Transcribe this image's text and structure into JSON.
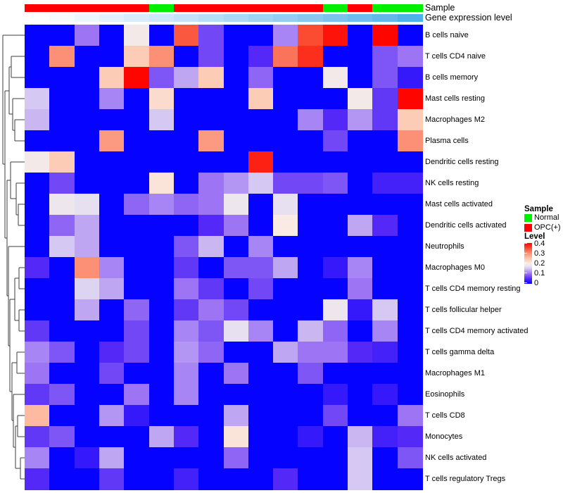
{
  "annotation_titles": {
    "sample": "Sample",
    "gene_expression": "Gene expression level"
  },
  "legend": {
    "sample_title": "Sample",
    "items": [
      {
        "label": "Normal",
        "color": "#00ee00"
      },
      {
        "label": "OPC(+)",
        "color": "#ff0000"
      }
    ],
    "level_title": "Level",
    "level_ticks": [
      "0.4",
      "0.3",
      "0.2",
      "0.1",
      "0"
    ]
  },
  "chart_data": {
    "type": "heatmap",
    "title": "",
    "value_label": "Level",
    "value_range": [
      0,
      0.4
    ],
    "n_columns": 16,
    "rows": [
      "B cells naive",
      "T cells CD4 naive",
      "B cells memory",
      "Mast cells resting",
      "Macrophages M2",
      "Plasma cells",
      "Dendritic cells resting",
      "NK cells resting",
      "Mast cells activated",
      "Dendritic cells activated",
      "Neutrophils",
      "Macrophages M0",
      "T cells CD4 memory resting",
      "T cells follicular helper",
      "T cells CD4 memory activated",
      "T cells gamma delta",
      "Macrophages M1",
      "Eosinophils",
      "T cells CD8",
      "Monocytes",
      "NK cells activated",
      "T cells regulatory  Tregs"
    ],
    "values": [
      [
        0,
        0,
        0.1,
        0,
        0.19,
        0,
        0.34,
        0.07,
        0,
        0,
        0.11,
        0.35,
        0.39,
        0,
        0.4,
        0
      ],
      [
        0,
        0.3,
        0,
        0,
        0.24,
        0.3,
        0,
        0.07,
        0,
        0.05,
        0.32,
        0.37,
        0,
        0,
        0.08,
        0.1
      ],
      [
        0,
        0,
        0,
        0.24,
        0.4,
        0.08,
        0.13,
        0.24,
        0,
        0.09,
        0,
        0,
        0.19,
        0,
        0.08,
        0.03
      ],
      [
        0.15,
        0,
        0,
        0.11,
        0,
        0.22,
        0,
        0,
        0,
        0.24,
        0,
        0,
        0,
        0.19,
        0.06,
        0.4
      ],
      [
        0.14,
        0,
        0,
        0,
        0,
        0.15,
        0,
        0,
        0,
        0,
        0,
        0.11,
        0.05,
        0.12,
        0.06,
        0.24
      ],
      [
        0,
        0,
        0,
        0.29,
        0,
        0,
        0,
        0.29,
        0,
        0,
        0,
        0,
        0.07,
        0,
        0,
        0.3
      ],
      [
        0.19,
        0.24,
        0,
        0,
        0,
        0,
        0,
        0,
        0,
        0.38,
        0,
        0,
        0,
        0,
        0,
        0
      ],
      [
        0,
        0.07,
        0,
        0,
        0,
        0.21,
        0,
        0.1,
        0.12,
        0.15,
        0.07,
        0.07,
        0.08,
        0,
        0.04,
        0.04
      ],
      [
        0,
        0.18,
        0.17,
        0,
        0.09,
        0.11,
        0.09,
        0.1,
        0.18,
        0,
        0.17,
        0,
        0,
        0,
        0,
        0
      ],
      [
        0,
        0.09,
        0.13,
        0,
        0,
        0,
        0,
        0.05,
        0.1,
        0,
        0.2,
        0,
        0,
        0.13,
        0.05,
        0
      ],
      [
        0,
        0.15,
        0.13,
        0,
        0,
        0,
        0.08,
        0.14,
        0,
        0.11,
        0,
        0,
        0,
        0,
        0,
        0
      ],
      [
        0.05,
        0,
        0.3,
        0.11,
        0,
        0,
        0.06,
        0,
        0.08,
        0.08,
        0.13,
        0,
        0.03,
        0.11,
        0,
        0
      ],
      [
        0,
        0,
        0.16,
        0.13,
        0,
        0,
        0.1,
        0.06,
        0,
        0.07,
        0,
        0,
        0,
        0.1,
        0,
        0
      ],
      [
        0,
        0,
        0.13,
        0,
        0.09,
        0,
        0.06,
        0.1,
        0.07,
        0,
        0,
        0,
        0.18,
        0.03,
        0.15,
        0
      ],
      [
        0.06,
        0,
        0,
        0,
        0.07,
        0,
        0.11,
        0.08,
        0.17,
        0.11,
        0,
        0.14,
        0.09,
        0,
        0.11,
        0
      ],
      [
        0.11,
        0.08,
        0,
        0.05,
        0.07,
        0,
        0.12,
        0.09,
        0,
        0,
        0.13,
        0.1,
        0.1,
        0.05,
        0.04,
        0
      ],
      [
        0.1,
        0,
        0,
        0.07,
        0,
        0,
        0.11,
        0,
        0.1,
        0,
        0,
        0.08,
        0,
        0,
        0,
        0
      ],
      [
        0.06,
        0.08,
        0,
        0,
        0.1,
        0,
        0.11,
        0,
        0,
        0,
        0,
        0,
        0.03,
        0,
        0.03,
        0
      ],
      [
        0.26,
        0,
        0,
        0.12,
        0.03,
        0,
        0,
        0,
        0.13,
        0,
        0,
        0,
        0.07,
        0,
        0,
        0.1
      ],
      [
        0.06,
        0.08,
        0,
        0,
        0,
        0.13,
        0.05,
        0,
        0.21,
        0,
        0,
        0.03,
        0,
        0.14,
        0.04,
        0.05
      ],
      [
        0.11,
        0,
        0.03,
        0.13,
        0,
        0,
        0,
        0,
        0.09,
        0,
        0,
        0,
        0,
        0.15,
        0,
        0.08
      ],
      [
        0.05,
        0,
        0,
        0.06,
        0,
        0,
        0.04,
        0,
        0,
        0,
        0.05,
        0,
        0,
        0.15,
        0,
        0
      ]
    ],
    "column_annotations": {
      "sample": [
        "OPC(+)",
        "OPC(+)",
        "OPC(+)",
        "OPC(+)",
        "OPC(+)",
        "Normal",
        "OPC(+)",
        "OPC(+)",
        "OPC(+)",
        "OPC(+)",
        "OPC(+)",
        "OPC(+)",
        "Normal",
        "OPC(+)",
        "Normal",
        "Normal"
      ],
      "sample_colors": {
        "Normal": "#00ee00",
        "OPC(+)": "#ff0000"
      },
      "gene_expression_colors": [
        "#ffffff",
        "#f7fbfe",
        "#edf6fd",
        "#e2f1fb",
        "#d8ecfa",
        "#cde8f9",
        "#c2e3f8",
        "#b7def7",
        "#abd8f5",
        "#9fd3f4",
        "#93cdf3",
        "#86c8f2",
        "#79c3f1",
        "#6cbef0",
        "#5fb9ef",
        "#4bb2ee"
      ]
    },
    "colormap": [
      {
        "t": 0.0,
        "c": "#0602ff"
      },
      {
        "t": 0.05,
        "c": "#5429f8"
      },
      {
        "t": 0.1,
        "c": "#9c74f4"
      },
      {
        "t": 0.15,
        "c": "#d5c8f2"
      },
      {
        "t": 0.175,
        "c": "#eae6ef"
      },
      {
        "t": 0.2,
        "c": "#f9ebe4"
      },
      {
        "t": 0.25,
        "c": "#fdc4ab"
      },
      {
        "t": 0.3,
        "c": "#fb9076"
      },
      {
        "t": 0.35,
        "c": "#fb4b31"
      },
      {
        "t": 0.4,
        "c": "#fe0500"
      }
    ],
    "dendrogram_segments": [
      [
        4,
        50,
        35,
        50
      ],
      [
        4,
        50,
        4,
        233
      ],
      [
        4,
        233,
        7,
        233
      ],
      [
        7,
        129,
        7,
        338
      ],
      [
        7,
        129,
        13,
        129
      ],
      [
        7,
        338,
        10,
        338
      ],
      [
        13,
        95,
        13,
        162
      ],
      [
        13,
        95,
        16,
        95
      ],
      [
        13,
        162,
        18,
        162
      ],
      [
        16,
        80,
        16,
        110
      ],
      [
        16,
        80,
        35,
        80
      ],
      [
        16,
        110,
        35,
        110
      ],
      [
        18,
        140,
        18,
        185
      ],
      [
        18,
        140,
        35,
        140
      ],
      [
        18,
        185,
        21,
        185
      ],
      [
        21,
        170,
        21,
        200
      ],
      [
        21,
        170,
        35,
        170
      ],
      [
        21,
        200,
        35,
        200
      ],
      [
        10,
        256,
        10,
        420
      ],
      [
        10,
        256,
        15,
        256
      ],
      [
        10,
        420,
        12,
        420
      ],
      [
        15,
        230,
        15,
        282
      ],
      [
        15,
        230,
        35,
        230
      ],
      [
        15,
        282,
        23,
        282
      ],
      [
        23,
        260,
        23,
        305
      ],
      [
        23,
        260,
        35,
        260
      ],
      [
        23,
        305,
        26,
        305
      ],
      [
        26,
        290,
        26,
        320
      ],
      [
        26,
        290,
        35,
        290
      ],
      [
        26,
        320,
        35,
        320
      ],
      [
        12,
        350,
        12,
        491
      ],
      [
        12,
        350,
        35,
        350
      ],
      [
        12,
        491,
        14,
        491
      ],
      [
        14,
        425,
        14,
        556
      ],
      [
        14,
        425,
        21,
        425
      ],
      [
        14,
        556,
        17,
        556
      ],
      [
        21,
        395,
        21,
        455
      ],
      [
        21,
        395,
        27,
        395
      ],
      [
        21,
        455,
        27,
        455
      ],
      [
        27,
        380,
        27,
        410
      ],
      [
        27,
        380,
        35,
        380
      ],
      [
        27,
        410,
        35,
        410
      ],
      [
        27,
        440,
        27,
        470
      ],
      [
        27,
        440,
        35,
        440
      ],
      [
        27,
        470,
        35,
        470
      ],
      [
        17,
        515,
        17,
        597
      ],
      [
        17,
        515,
        24,
        515
      ],
      [
        17,
        597,
        19,
        597
      ],
      [
        24,
        500,
        24,
        530
      ],
      [
        24,
        500,
        35,
        500
      ],
      [
        24,
        530,
        35,
        530
      ],
      [
        19,
        560,
        19,
        635
      ],
      [
        19,
        560,
        35,
        560
      ],
      [
        19,
        635,
        22,
        635
      ],
      [
        22,
        605,
        22,
        665
      ],
      [
        22,
        605,
        25,
        605
      ],
      [
        22,
        665,
        29,
        665
      ],
      [
        25,
        590,
        25,
        620
      ],
      [
        25,
        590,
        35,
        590
      ],
      [
        25,
        620,
        35,
        620
      ],
      [
        29,
        650,
        29,
        680
      ],
      [
        29,
        650,
        35,
        650
      ],
      [
        29,
        680,
        35,
        680
      ]
    ]
  }
}
